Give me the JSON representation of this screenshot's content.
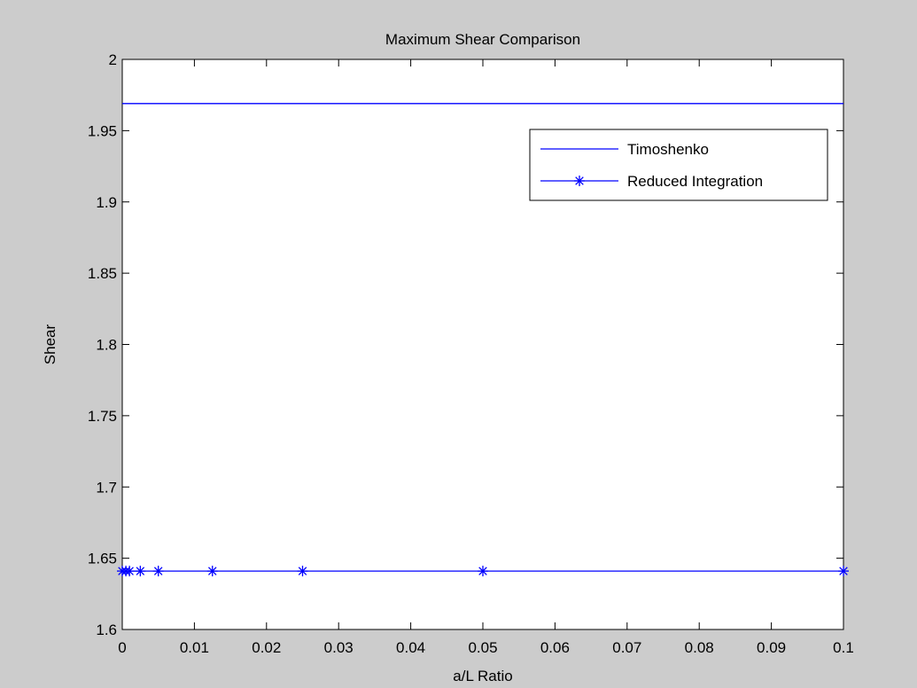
{
  "chart_data": {
    "type": "line",
    "title": "Maximum Shear Comparison",
    "xlabel": "a/L Ratio",
    "ylabel": "Shear",
    "xlim": [
      0,
      0.1
    ],
    "ylim": [
      1.6,
      2.0
    ],
    "x_ticks": [
      0,
      0.01,
      0.02,
      0.03,
      0.04,
      0.05,
      0.06,
      0.07,
      0.08,
      0.09,
      0.1
    ],
    "x_tick_labels": [
      "0",
      "0.01",
      "0.02",
      "0.03",
      "0.04",
      "0.05",
      "0.06",
      "0.07",
      "0.08",
      "0.09",
      "0.1"
    ],
    "y_ticks": [
      1.6,
      1.65,
      1.7,
      1.75,
      1.8,
      1.85,
      1.9,
      1.95,
      2.0
    ],
    "y_tick_labels": [
      "1.6",
      "1.65",
      "1.7",
      "1.75",
      "1.8",
      "1.85",
      "1.9",
      "1.95",
      "2"
    ],
    "grid": false,
    "legend_position": "top-right",
    "series": [
      {
        "name": "Timoshenko",
        "color": "#0000ff",
        "marker": "none",
        "x": [
          0,
          0.1
        ],
        "y": [
          1.969,
          1.969
        ]
      },
      {
        "name": "Reduced Integration",
        "color": "#0000ff",
        "marker": "asterisk",
        "x": [
          0,
          0.0005,
          0.001,
          0.0025,
          0.005,
          0.0125,
          0.025,
          0.05,
          0.1
        ],
        "y": [
          1.641,
          1.641,
          1.641,
          1.641,
          1.641,
          1.641,
          1.641,
          1.641,
          1.641
        ]
      }
    ]
  }
}
